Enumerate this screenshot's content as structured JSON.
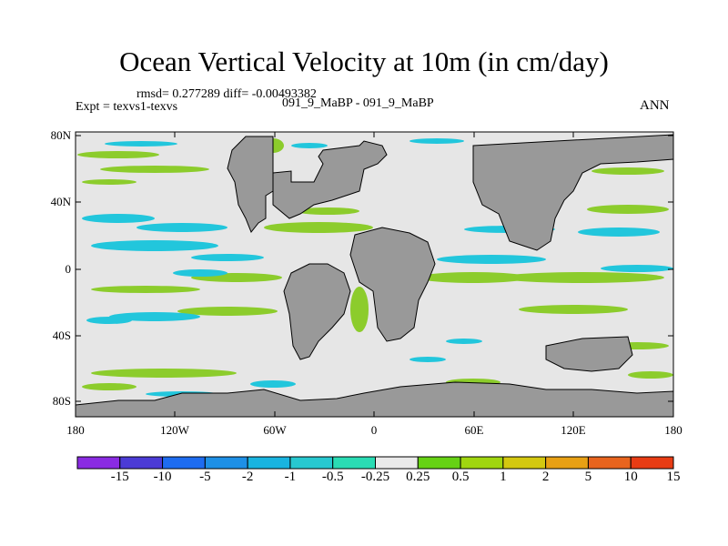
{
  "title": "Ocean Vertical Velocity at 10m (in cm/day)",
  "stats_line": "rmsd= 0.277289 diff= -0.00493382",
  "experiment": "Expt = texvs1-texvs",
  "subtitle": "091_9_MaBP - 091_9_MaBP",
  "season": "ANN",
  "lat_labels": [
    "80N",
    "40N",
    "0",
    "40S",
    "80S"
  ],
  "lon_labels": [
    "180",
    "120W",
    "60W",
    "0",
    "60E",
    "120E",
    "180"
  ],
  "colorbar": {
    "labels": [
      "-15",
      "-10",
      "-5",
      "-2",
      "-1",
      "-0.5",
      "-0.25",
      "0.25",
      "0.5",
      "1",
      "2",
      "5",
      "10",
      "15"
    ],
    "colors": [
      "#8a2be2",
      "#4b3bd6",
      "#1e6cf0",
      "#1e90e6",
      "#19b4e0",
      "#27c8d0",
      "#2adcb4",
      "#eaeaea",
      "#66d214",
      "#a0d60f",
      "#d4c810",
      "#e8a014",
      "#e8641e",
      "#e83c14"
    ]
  },
  "map_colors": {
    "land": "#999999",
    "ocean": "#e6e6e6"
  }
}
